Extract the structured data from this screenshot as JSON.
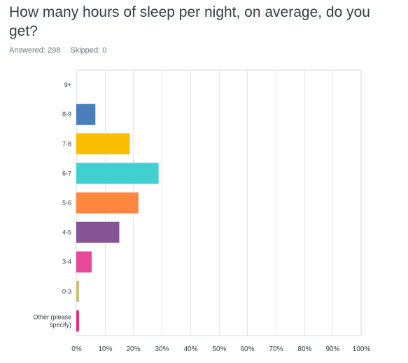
{
  "question": "How many hours of sleep per night, on average, do you get?",
  "stats": {
    "answered_label": "Answered: 298",
    "skipped_label": "Skipped: 0"
  },
  "chart_data": {
    "type": "bar",
    "orientation": "horizontal",
    "categories": [
      "9+",
      "8-9",
      "7-8",
      "6-7",
      "5-6",
      "4-5",
      "3-4",
      "0-3",
      "Other (please specify)"
    ],
    "category_lines": [
      [
        "9+"
      ],
      [
        "8-9"
      ],
      [
        "7-8"
      ],
      [
        "6-7"
      ],
      [
        "5-6"
      ],
      [
        "4-5"
      ],
      [
        "3-4"
      ],
      [
        "0-3"
      ],
      [
        "Other (please",
        "specify)"
      ]
    ],
    "values": [
      0,
      6.7,
      18.8,
      28.9,
      21.8,
      15.1,
      5.4,
      1.0,
      1.0
    ],
    "colors": [
      "#cccccc",
      "#4a7ebb",
      "#fcbe00",
      "#42cfcf",
      "#ff8640",
      "#845592",
      "#e8489a",
      "#c9c37a",
      "#e2307a"
    ],
    "xlim": [
      0,
      100
    ],
    "xticks": [
      "0%",
      "10%",
      "20%",
      "30%",
      "40%",
      "50%",
      "60%",
      "70%",
      "80%",
      "90%",
      "100%"
    ],
    "grid": true
  }
}
